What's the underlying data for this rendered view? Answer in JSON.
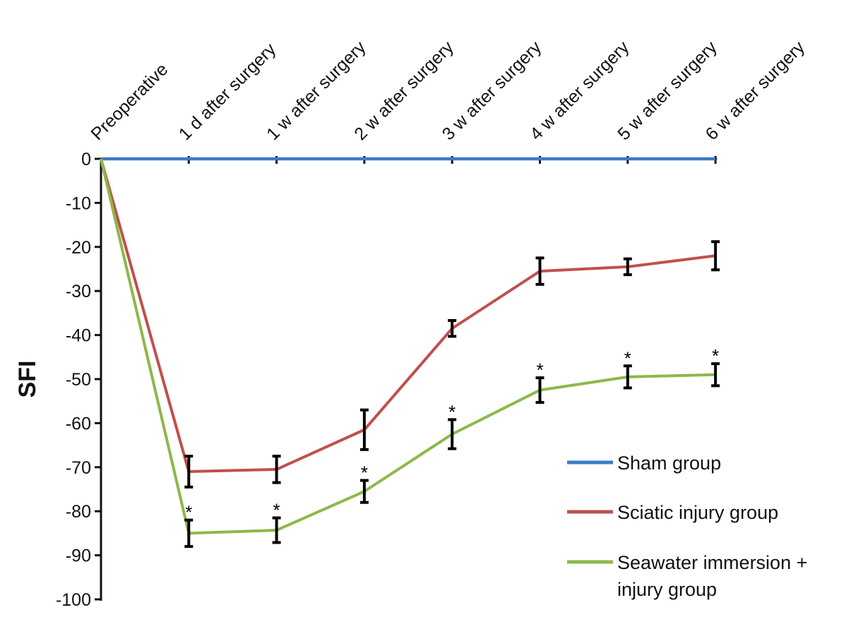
{
  "chart_data": {
    "type": "line",
    "xlabel": "",
    "ylabel": "SFI",
    "categories": [
      "Preoperative",
      "1 d after surgery",
      "1 w after surgery",
      "2 w after surgery",
      "3 w after surgery",
      "4 w after surgery",
      "5 w after surgery",
      "6 w after surgery"
    ],
    "y_ticks": [
      0,
      -10,
      -20,
      -30,
      -40,
      -50,
      -60,
      -70,
      -80,
      -90,
      -100
    ],
    "ylim": [
      -100,
      0
    ],
    "grid": false,
    "legend_position": "bottom-right",
    "series": [
      {
        "name": "Sham group",
        "color": "#3d7bc4",
        "values": [
          0,
          0,
          0,
          0,
          0,
          0,
          0,
          0
        ],
        "errors": [
          0,
          0,
          0,
          0,
          0,
          0,
          0,
          0
        ]
      },
      {
        "name": "Sciatic injury group",
        "color": "#c0504d",
        "values": [
          0,
          -71,
          -70.5,
          -61.5,
          -38.5,
          -25.5,
          -24.5,
          -22
        ],
        "errors": [
          0,
          3.5,
          3,
          4.5,
          1.8,
          3,
          1.8,
          3.2
        ]
      },
      {
        "name": "Seawater immersion + injury group",
        "legend_lines": [
          "Seawater immersion +",
          "injury group"
        ],
        "color": "#8db84a",
        "values": [
          0,
          -85,
          -84.3,
          -75.5,
          -62.5,
          -52.5,
          -49.5,
          -49
        ],
        "errors": [
          0,
          3,
          2.8,
          2.5,
          3.3,
          2.8,
          2.5,
          2.5
        ]
      }
    ],
    "significance_marker": "*",
    "significant_points": [
      1,
      2,
      3,
      4,
      5,
      6,
      7
    ]
  }
}
